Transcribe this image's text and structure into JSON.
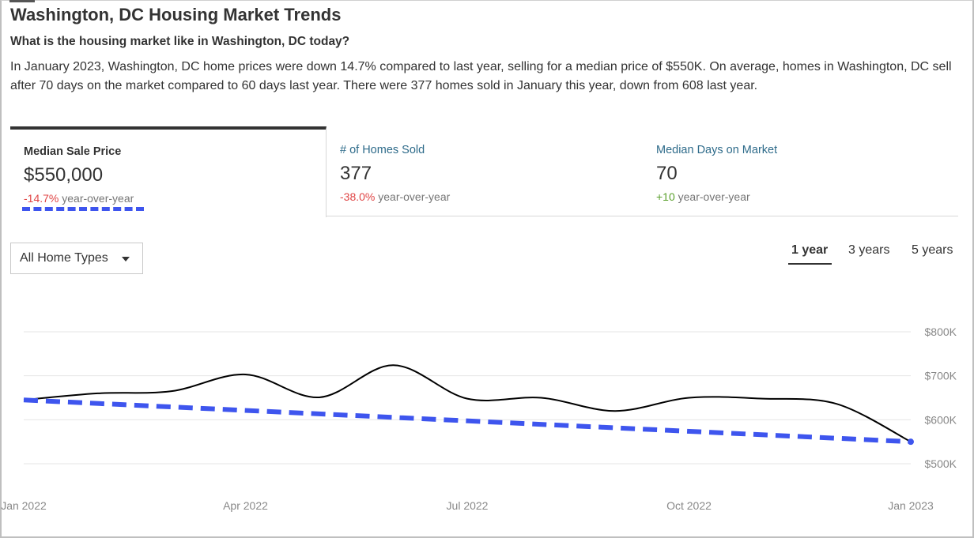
{
  "header": {
    "title": "Washington, DC Housing Market Trends",
    "subtitle": "What is the housing market like in Washington, DC today?",
    "summary": "In January 2023, Washington, DC home prices were down 14.7% compared to last year, selling for a median price of $550K. On average, homes in Washington, DC sell after 70 days on the market compared to 60 days last year. There were 377 homes sold in January this year, down from 608 last year."
  },
  "tabs": [
    {
      "label": "Median Sale Price",
      "value": "$550,000",
      "change": "-14.7%",
      "change_suffix": " year-over-year",
      "change_color": "#e04545"
    },
    {
      "label": "# of Homes Sold",
      "value": "377",
      "change": "-38.0%",
      "change_suffix": " year-over-year",
      "change_color": "#e04545"
    },
    {
      "label": "Median Days on Market",
      "value": "70",
      "change": "+10",
      "change_suffix": " year-over-year",
      "change_color": "#5aa02c"
    }
  ],
  "filter": {
    "selected": "All Home Types"
  },
  "ranges": [
    "1 year",
    "3 years",
    "5 years"
  ],
  "active_range": "1 year",
  "annotation_color": "#3e55ee",
  "chart_data": {
    "type": "line",
    "ytick_labels": [
      "$800K",
      "$700K",
      "$600K",
      "$500K"
    ],
    "yticks": [
      800,
      700,
      600,
      500
    ],
    "ylim": [
      500,
      800
    ],
    "xtick_labels": [
      "Jan 2022",
      "Apr 2022",
      "Jul 2022",
      "Oct 2022",
      "Jan 2023"
    ],
    "xticks": [
      0,
      3,
      6,
      9,
      12
    ],
    "xlim": [
      0,
      12
    ],
    "series": [
      {
        "x": [
          0,
          1,
          2,
          3,
          4,
          5,
          6,
          7,
          8,
          9,
          10,
          11,
          12
        ],
        "values": [
          645,
          660,
          665,
          703,
          651,
          724,
          648,
          650,
          620,
          650,
          648,
          636,
          550
        ],
        "color": "#000000"
      }
    ],
    "trend_annotation": {
      "x": [
        0,
        12
      ],
      "values": [
        645,
        550
      ],
      "color": "#3e55ee"
    },
    "grid": true,
    "gridlines": [
      800,
      700,
      600,
      500
    ]
  }
}
